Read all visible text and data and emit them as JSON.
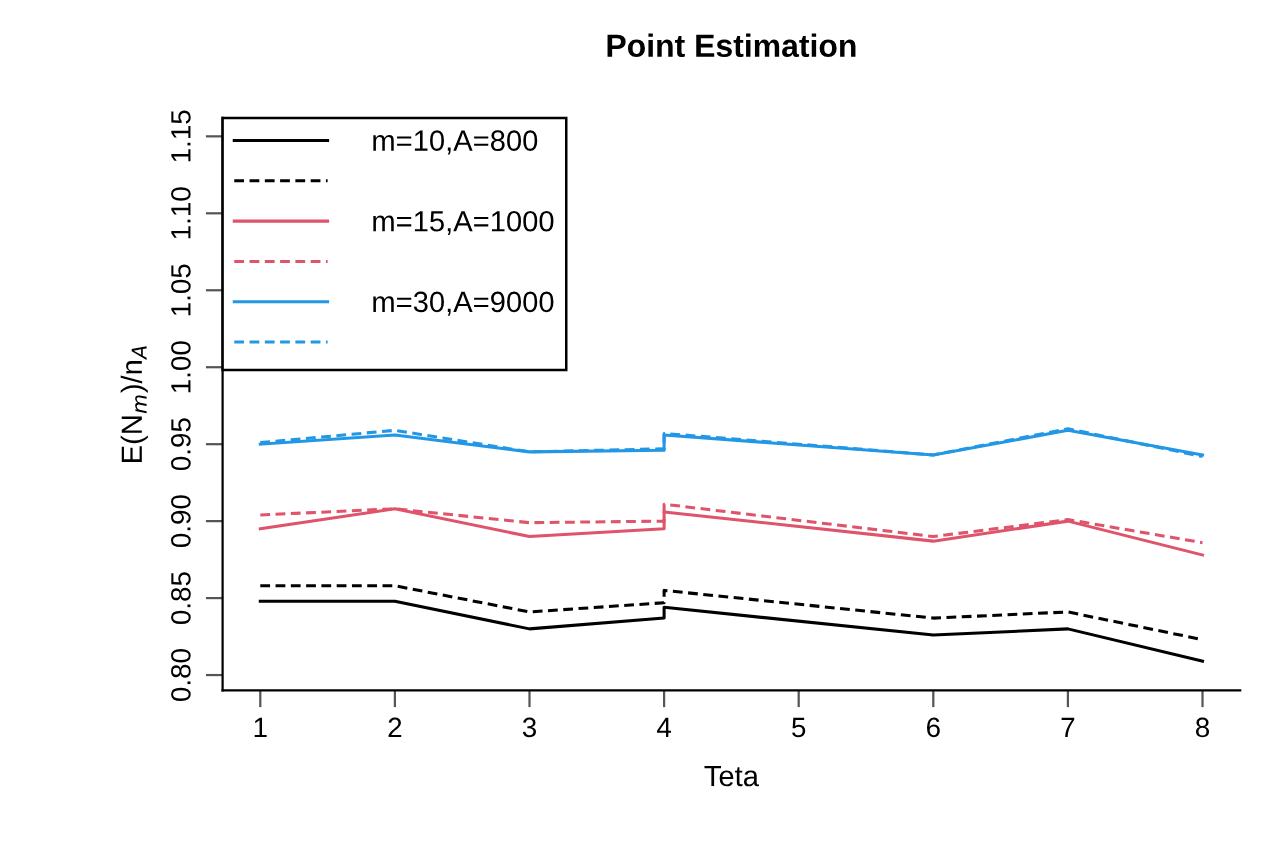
{
  "chart_data": {
    "type": "line",
    "title": "Point Estimation",
    "xlabel": "Teta",
    "ylabel": "E(N$_{m}$)/n$_{A}$",
    "x": [
      1,
      2,
      3,
      4,
      4,
      6,
      7,
      8
    ],
    "series": [
      {
        "name": "m=10,A=800",
        "color": "#000000",
        "line_style": "solid",
        "values": [
          0.848,
          0.848,
          0.83,
          0.837,
          0.844,
          0.826,
          0.83,
          0.809
        ]
      },
      {
        "color": "#000000",
        "line_style": "dashed",
        "values": [
          0.858,
          0.858,
          0.841,
          0.847,
          0.855,
          0.837,
          0.841,
          0.823
        ]
      },
      {
        "name": "m=15,A=1000",
        "color": "#df536b",
        "line_style": "solid",
        "values": [
          0.895,
          0.908,
          0.89,
          0.895,
          0.906,
          0.887,
          0.9,
          0.878
        ]
      },
      {
        "color": "#df536b",
        "line_style": "dashed",
        "values": [
          0.904,
          0.908,
          0.899,
          0.9,
          0.911,
          0.89,
          0.901,
          0.886
        ]
      },
      {
        "name": "m=30,A=9000",
        "color": "#2297e6",
        "line_style": "solid",
        "values": [
          0.95,
          0.956,
          0.945,
          0.946,
          0.956,
          0.943,
          0.959,
          0.943
        ]
      },
      {
        "color": "#2297e6",
        "line_style": "dashed",
        "values": [
          0.951,
          0.959,
          0.945,
          0.947,
          0.957,
          0.943,
          0.96,
          0.942
        ]
      }
    ],
    "xlim": [
      0.72,
      8.28
    ],
    "ylim": [
      0.79,
      1.162
    ],
    "xticks": [
      1,
      2,
      3,
      4,
      5,
      6,
      7,
      8
    ],
    "yticks": [
      {
        "value": 0.8,
        "label": "0.80"
      },
      {
        "value": 0.85,
        "label": "0.85"
      },
      {
        "value": 0.9,
        "label": "0.90"
      },
      {
        "value": 0.95,
        "label": "0.95"
      },
      {
        "value": 1.0,
        "label": "1.00"
      },
      {
        "value": 1.05,
        "label": "1.05"
      },
      {
        "value": 1.1,
        "label": "1.10"
      },
      {
        "value": 1.15,
        "label": "1.15"
      }
    ],
    "legend": "top left",
    "grid": false,
    "marker": "none"
  }
}
